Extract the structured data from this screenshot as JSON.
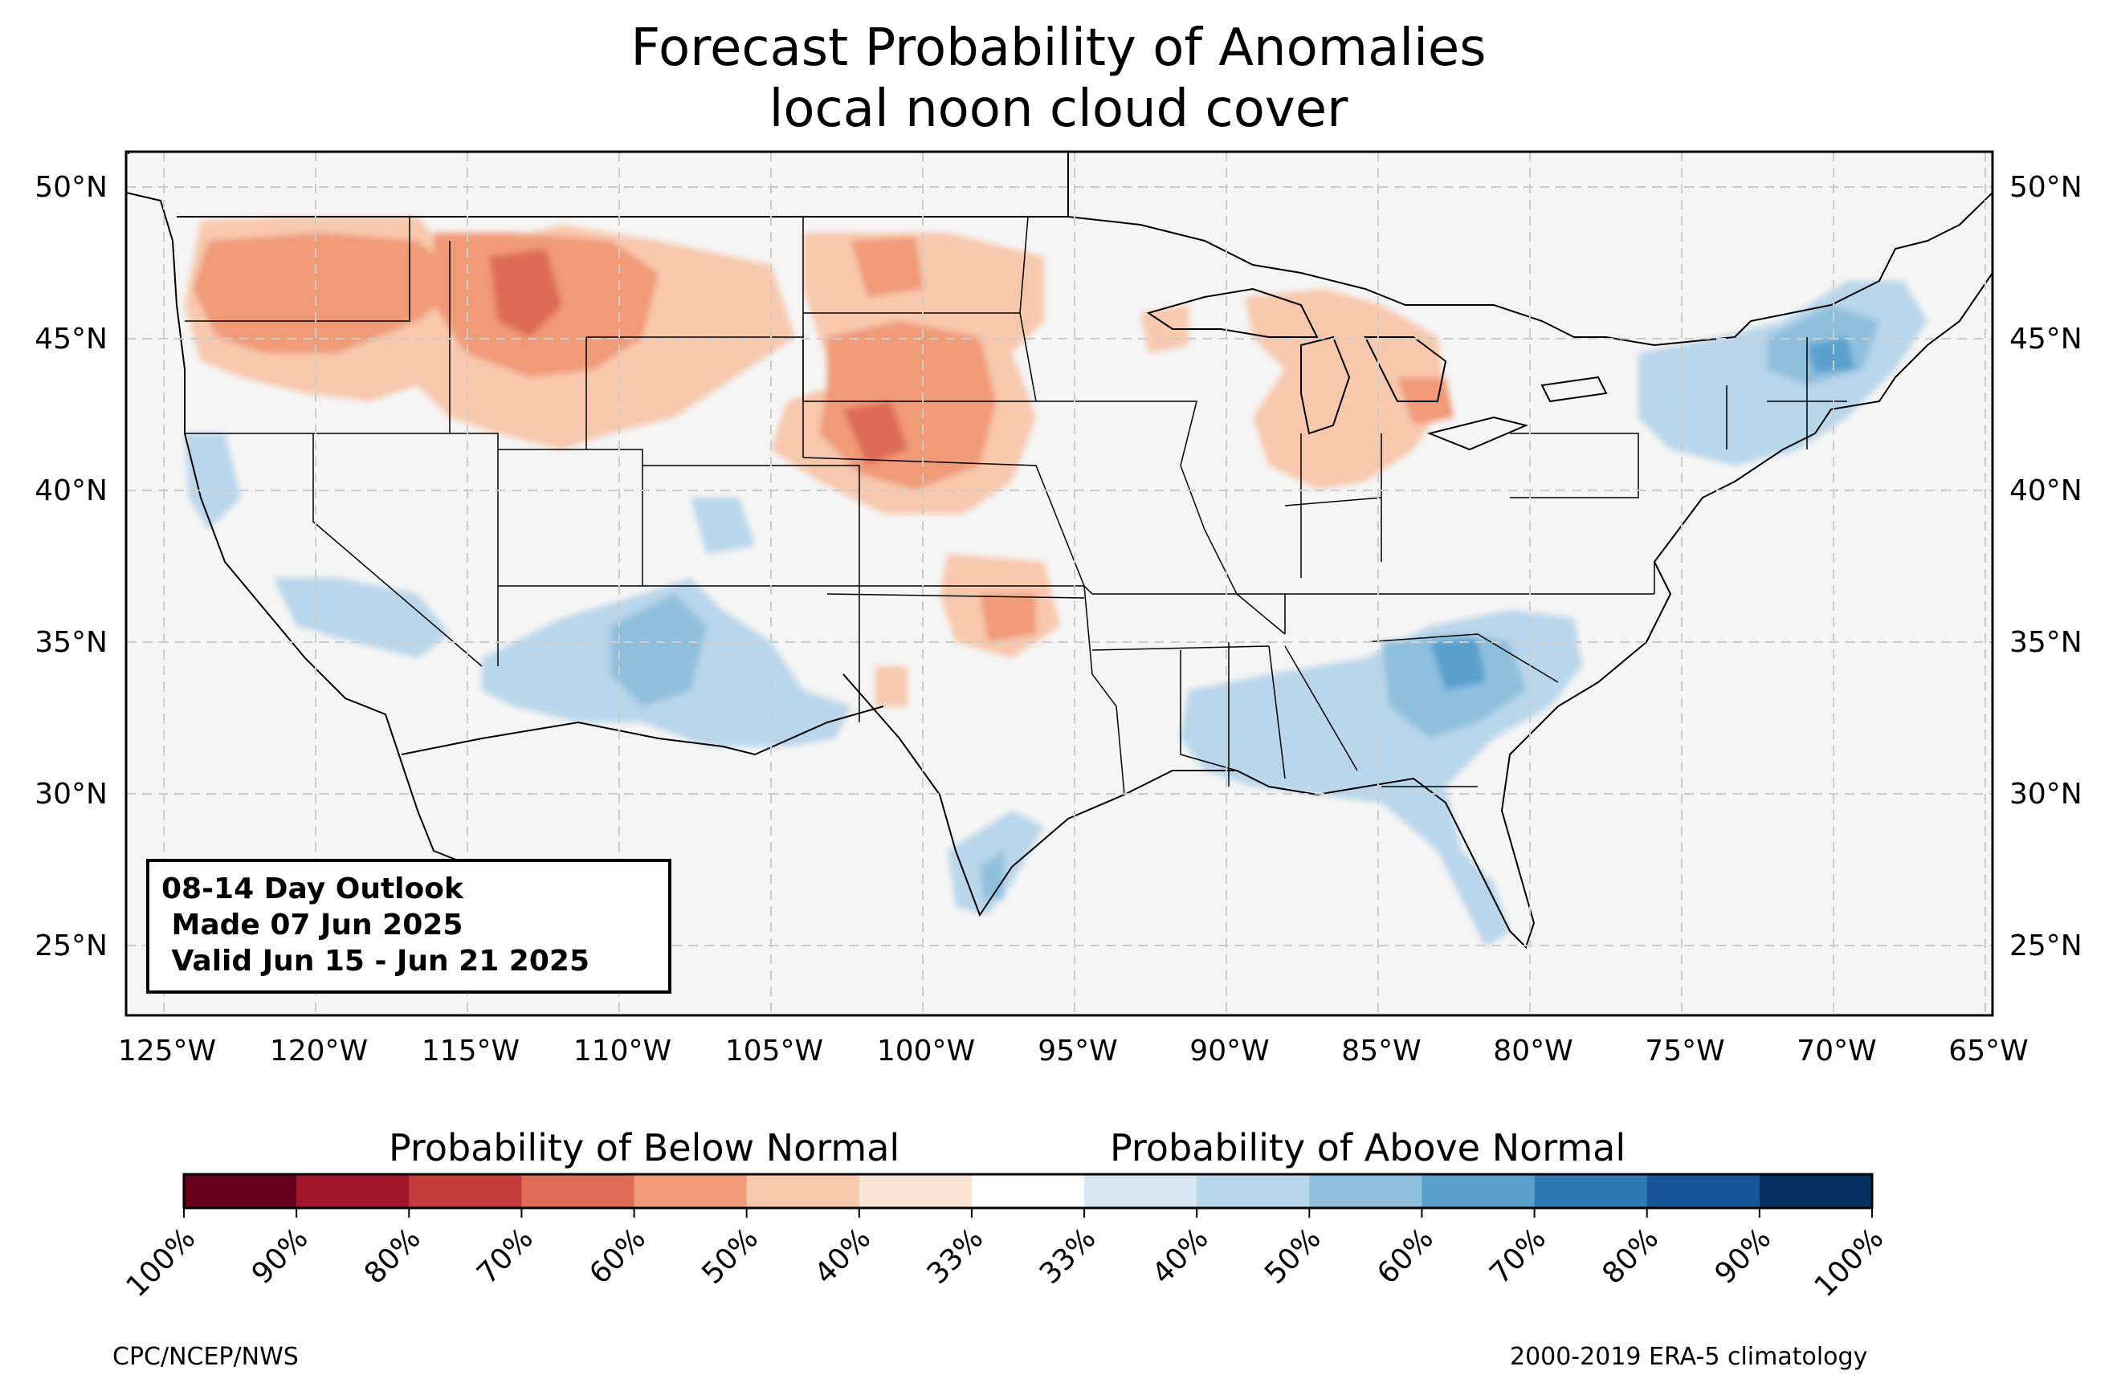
{
  "title": {
    "line1": "Forecast Probability of Anomalies",
    "line2": "local noon cloud cover"
  },
  "outlook_box": {
    "line1": "08-14 Day Outlook",
    "line2": " Made 07 Jun 2025",
    "line3": " Valid Jun 15 - Jun 21 2025"
  },
  "axes": {
    "lat_labels": [
      "50°N",
      "45°N",
      "40°N",
      "35°N",
      "30°N",
      "25°N"
    ],
    "lon_labels": [
      "125°W",
      "120°W",
      "115°W",
      "110°W",
      "105°W",
      "100°W",
      "95°W",
      "90°W",
      "85°W",
      "80°W",
      "75°W",
      "70°W",
      "65°W"
    ],
    "gridlines": true
  },
  "legend": {
    "below_label": "Probability of Below Normal",
    "above_label": "Probability of Above Normal",
    "below_colors": [
      "#67001f",
      "#a1162b",
      "#c53b3b",
      "#de6b56",
      "#f09a78",
      "#f8c8ad",
      "#fbe3d6"
    ],
    "above_colors": [
      "#d7e7f1",
      "#b9d6ea",
      "#8ec0de",
      "#5aa0cd",
      "#2f79b5",
      "#185596",
      "#053061"
    ],
    "tick_labels": [
      "100%",
      "90%",
      "80%",
      "70%",
      "60%",
      "50%",
      "40%",
      "33%",
      "33%",
      "40%",
      "50%",
      "60%",
      "70%",
      "80%",
      "90%",
      "100%"
    ]
  },
  "footer": {
    "left": "CPC/NCEP/NWS",
    "right": "2000-2019 ERA-5 climatology"
  },
  "colors": {
    "land": "#f5f5f5",
    "below_light": "#f8c8ad",
    "below_mid": "#f09a78",
    "below_strong": "#de6b56",
    "above_light": "#b9d6ea",
    "above_mid": "#8ec0de",
    "above_strong": "#5aa0cd"
  }
}
